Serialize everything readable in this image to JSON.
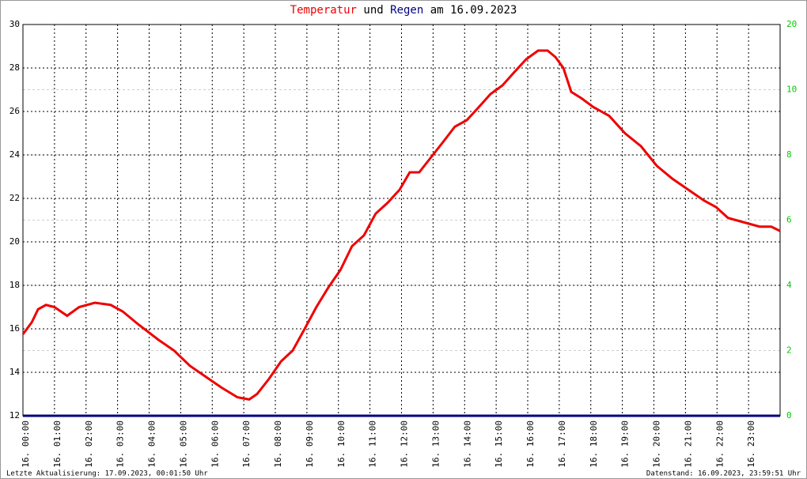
{
  "chart_data": {
    "type": "line",
    "title_and": "und",
    "title_date": "am 16.09.2023",
    "footer_left": "Letzte Aktualisierung: 17.09.2023, 00:01:50 Uhr",
    "footer_right": "Datenstand: 16.09.2023, 23:59:51 Uhr",
    "xlim": [
      0,
      24
    ],
    "xticks": [
      {
        "value": 0,
        "label": "16. 00:00"
      },
      {
        "value": 1,
        "label": "16. 01:00"
      },
      {
        "value": 2,
        "label": "16. 02:00"
      },
      {
        "value": 3,
        "label": "16. 03:00"
      },
      {
        "value": 4,
        "label": "16. 04:00"
      },
      {
        "value": 5,
        "label": "16. 05:00"
      },
      {
        "value": 6,
        "label": "16. 06:00"
      },
      {
        "value": 7,
        "label": "16. 07:00"
      },
      {
        "value": 8,
        "label": "16. 08:00"
      },
      {
        "value": 9,
        "label": "16. 09:00"
      },
      {
        "value": 10,
        "label": "16. 10:00"
      },
      {
        "value": 11,
        "label": "16. 11:00"
      },
      {
        "value": 12,
        "label": "16. 12:00"
      },
      {
        "value": 13,
        "label": "16. 13:00"
      },
      {
        "value": 14,
        "label": "16. 14:00"
      },
      {
        "value": 15,
        "label": "16. 15:00"
      },
      {
        "value": 16,
        "label": "16. 16:00"
      },
      {
        "value": 17,
        "label": "16. 17:00"
      },
      {
        "value": 18,
        "label": "16. 18:00"
      },
      {
        "value": 19,
        "label": "16. 19:00"
      },
      {
        "value": 20,
        "label": "16. 20:00"
      },
      {
        "value": 21,
        "label": "16. 21:00"
      },
      {
        "value": 22,
        "label": "16. 22:00"
      },
      {
        "value": 23,
        "label": "16. 23:00"
      }
    ],
    "ylim": [
      12,
      30
    ],
    "yticks": [
      12,
      14,
      16,
      18,
      20,
      22,
      24,
      26,
      28,
      30
    ],
    "y2lim": [
      0,
      12
    ],
    "y2ticks": [
      0,
      2,
      4,
      6,
      8,
      10
    ],
    "y2_top_label": "20",
    "grid": true,
    "series": [
      {
        "name": "Temperatur",
        "color": "#ee0000",
        "x": [
          0,
          0.28,
          0.48,
          0.73,
          1.0,
          1.4,
          1.78,
          2.28,
          2.78,
          3.16,
          3.66,
          4.29,
          4.79,
          5.29,
          5.79,
          6.29,
          6.8,
          7.17,
          7.42,
          7.8,
          8.18,
          8.55,
          8.93,
          9.3,
          9.68,
          10.06,
          10.43,
          10.81,
          11.18,
          11.56,
          11.94,
          12.26,
          12.56,
          12.94,
          13.32,
          13.69,
          14.07,
          14.45,
          14.82,
          15.2,
          15.57,
          15.95,
          16.33,
          16.63,
          16.88,
          17.13,
          17.38,
          17.71,
          18.08,
          18.58,
          19.08,
          19.59,
          20.09,
          20.59,
          21.09,
          21.59,
          21.97,
          22.35,
          22.85,
          23.35,
          23.72,
          24
        ],
        "values": [
          15.75,
          16.3,
          16.9,
          17.1,
          17.0,
          16.6,
          17.0,
          17.2,
          17.1,
          16.8,
          16.2,
          15.5,
          15.0,
          14.3,
          13.8,
          13.3,
          12.85,
          12.75,
          13.0,
          13.7,
          14.5,
          15.0,
          16.0,
          17.0,
          17.9,
          18.7,
          19.8,
          20.3,
          21.3,
          21.8,
          22.4,
          23.2,
          23.2,
          23.9,
          24.6,
          25.3,
          25.6,
          26.2,
          26.8,
          27.2,
          27.8,
          28.4,
          28.8,
          28.8,
          28.5,
          28.0,
          26.9,
          26.6,
          26.2,
          25.8,
          25.0,
          24.4,
          23.5,
          22.9,
          22.4,
          21.9,
          21.6,
          21.1,
          20.9,
          20.7,
          20.7,
          20.5
        ]
      },
      {
        "name": "Regen",
        "color": "#000080",
        "axis": "y2",
        "x": [
          0,
          24
        ],
        "values": [
          0,
          0
        ]
      }
    ]
  }
}
